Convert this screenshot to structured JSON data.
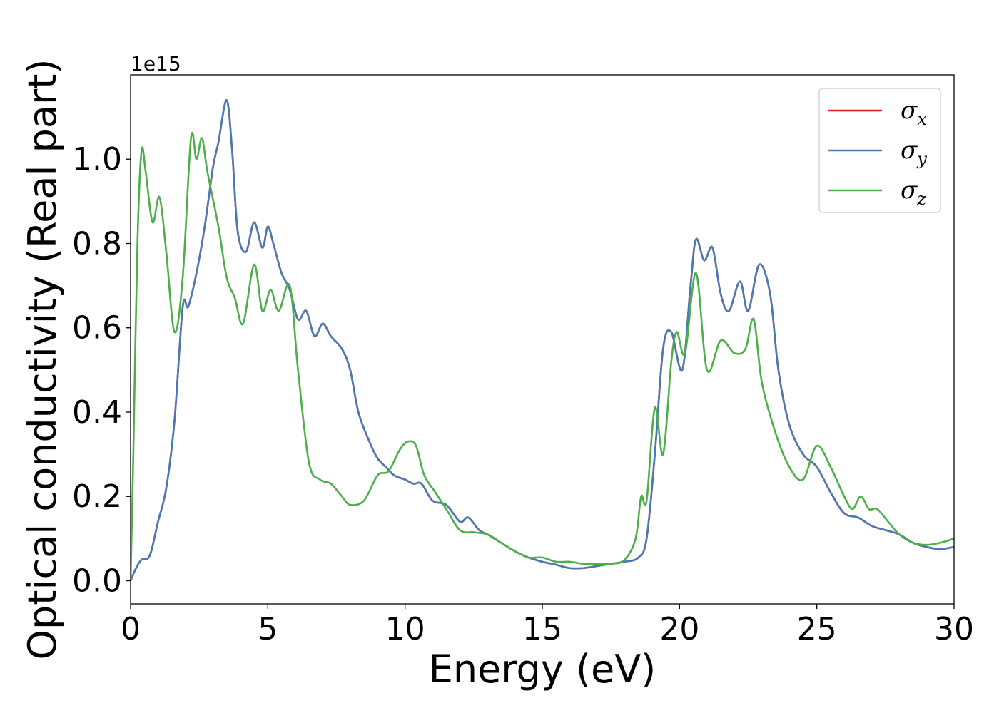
{
  "chart_data": {
    "type": "line",
    "xlabel": "Energy (eV)",
    "ylabel": "Optical conductivity (Real part)",
    "y_offset_text": "1e15",
    "xlim": [
      0,
      30
    ],
    "ylim": [
      -0.055,
      1.2
    ],
    "x_ticks": [
      0,
      5,
      10,
      15,
      20,
      25,
      30
    ],
    "x_tick_labels": [
      "0",
      "5",
      "10",
      "15",
      "20",
      "25",
      "30"
    ],
    "y_ticks": [
      0.0,
      0.2,
      0.4,
      0.6,
      0.8,
      1.0
    ],
    "y_tick_labels": [
      "0.0",
      "0.2",
      "0.4",
      "0.6",
      "0.8",
      "1.0"
    ],
    "grid": false,
    "legend_position": "top-right",
    "series": [
      {
        "name": "σx",
        "legend": {
          "base": "σ",
          "sub": "x"
        },
        "color": "#e41a1c",
        "points": [
          [
            0,
            0.0
          ],
          [
            0.2,
            0.03
          ],
          [
            0.4,
            0.05
          ],
          [
            0.7,
            0.06
          ],
          [
            1.0,
            0.14
          ],
          [
            1.3,
            0.22
          ],
          [
            1.6,
            0.38
          ],
          [
            1.9,
            0.65
          ],
          [
            2.1,
            0.65
          ],
          [
            2.4,
            0.73
          ],
          [
            2.7,
            0.84
          ],
          [
            3.0,
            0.98
          ],
          [
            3.2,
            1.04
          ],
          [
            3.5,
            1.14
          ],
          [
            3.7,
            1.02
          ],
          [
            3.9,
            0.83
          ],
          [
            4.2,
            0.78
          ],
          [
            4.5,
            0.85
          ],
          [
            4.8,
            0.79
          ],
          [
            5.0,
            0.84
          ],
          [
            5.2,
            0.8
          ],
          [
            5.5,
            0.73
          ],
          [
            5.8,
            0.69
          ],
          [
            6.1,
            0.62
          ],
          [
            6.4,
            0.64
          ],
          [
            6.7,
            0.58
          ],
          [
            7.0,
            0.61
          ],
          [
            7.3,
            0.58
          ],
          [
            7.7,
            0.55
          ],
          [
            8.0,
            0.5
          ],
          [
            8.3,
            0.4
          ],
          [
            8.7,
            0.33
          ],
          [
            9.0,
            0.29
          ],
          [
            9.3,
            0.27
          ],
          [
            9.6,
            0.25
          ],
          [
            10.0,
            0.24
          ],
          [
            10.3,
            0.23
          ],
          [
            10.6,
            0.23
          ],
          [
            11.0,
            0.19
          ],
          [
            11.5,
            0.18
          ],
          [
            12.0,
            0.14
          ],
          [
            12.3,
            0.15
          ],
          [
            12.7,
            0.12
          ],
          [
            13.0,
            0.11
          ],
          [
            13.5,
            0.09
          ],
          [
            14.0,
            0.07
          ],
          [
            14.5,
            0.055
          ],
          [
            15.0,
            0.045
          ],
          [
            15.5,
            0.038
          ],
          [
            16.0,
            0.03
          ],
          [
            16.5,
            0.03
          ],
          [
            17.0,
            0.035
          ],
          [
            17.5,
            0.04
          ],
          [
            18.0,
            0.045
          ],
          [
            18.5,
            0.055
          ],
          [
            18.8,
            0.1
          ],
          [
            19.1,
            0.3
          ],
          [
            19.4,
            0.55
          ],
          [
            19.7,
            0.59
          ],
          [
            20.1,
            0.5
          ],
          [
            20.4,
            0.7
          ],
          [
            20.6,
            0.81
          ],
          [
            20.9,
            0.76
          ],
          [
            21.2,
            0.79
          ],
          [
            21.5,
            0.68
          ],
          [
            21.8,
            0.64
          ],
          [
            22.2,
            0.71
          ],
          [
            22.5,
            0.64
          ],
          [
            22.9,
            0.75
          ],
          [
            23.3,
            0.68
          ],
          [
            23.6,
            0.5
          ],
          [
            24.0,
            0.37
          ],
          [
            24.5,
            0.3
          ],
          [
            25.0,
            0.27
          ],
          [
            25.5,
            0.21
          ],
          [
            26.0,
            0.16
          ],
          [
            26.5,
            0.15
          ],
          [
            27.0,
            0.13
          ],
          [
            27.5,
            0.12
          ],
          [
            28.0,
            0.11
          ],
          [
            28.5,
            0.09
          ],
          [
            29.0,
            0.08
          ],
          [
            29.5,
            0.075
          ],
          [
            30.0,
            0.08
          ]
        ]
      },
      {
        "name": "σy",
        "legend": {
          "base": "σ",
          "sub": "y"
        },
        "color": "#4a7ab5",
        "points": [
          [
            0,
            0.0
          ],
          [
            0.2,
            0.03
          ],
          [
            0.4,
            0.05
          ],
          [
            0.7,
            0.06
          ],
          [
            1.0,
            0.14
          ],
          [
            1.3,
            0.22
          ],
          [
            1.6,
            0.38
          ],
          [
            1.9,
            0.65
          ],
          [
            2.1,
            0.65
          ],
          [
            2.4,
            0.73
          ],
          [
            2.7,
            0.84
          ],
          [
            3.0,
            0.98
          ],
          [
            3.2,
            1.04
          ],
          [
            3.5,
            1.14
          ],
          [
            3.7,
            1.02
          ],
          [
            3.9,
            0.83
          ],
          [
            4.2,
            0.78
          ],
          [
            4.5,
            0.85
          ],
          [
            4.8,
            0.79
          ],
          [
            5.0,
            0.84
          ],
          [
            5.2,
            0.8
          ],
          [
            5.5,
            0.73
          ],
          [
            5.8,
            0.69
          ],
          [
            6.1,
            0.62
          ],
          [
            6.4,
            0.64
          ],
          [
            6.7,
            0.58
          ],
          [
            7.0,
            0.61
          ],
          [
            7.3,
            0.58
          ],
          [
            7.7,
            0.55
          ],
          [
            8.0,
            0.5
          ],
          [
            8.3,
            0.4
          ],
          [
            8.7,
            0.33
          ],
          [
            9.0,
            0.29
          ],
          [
            9.3,
            0.27
          ],
          [
            9.6,
            0.25
          ],
          [
            10.0,
            0.24
          ],
          [
            10.3,
            0.23
          ],
          [
            10.6,
            0.23
          ],
          [
            11.0,
            0.19
          ],
          [
            11.5,
            0.18
          ],
          [
            12.0,
            0.14
          ],
          [
            12.3,
            0.15
          ],
          [
            12.7,
            0.12
          ],
          [
            13.0,
            0.11
          ],
          [
            13.5,
            0.09
          ],
          [
            14.0,
            0.07
          ],
          [
            14.5,
            0.055
          ],
          [
            15.0,
            0.045
          ],
          [
            15.5,
            0.038
          ],
          [
            16.0,
            0.03
          ],
          [
            16.5,
            0.03
          ],
          [
            17.0,
            0.035
          ],
          [
            17.5,
            0.04
          ],
          [
            18.0,
            0.045
          ],
          [
            18.5,
            0.055
          ],
          [
            18.8,
            0.1
          ],
          [
            19.1,
            0.3
          ],
          [
            19.4,
            0.55
          ],
          [
            19.7,
            0.59
          ],
          [
            20.1,
            0.5
          ],
          [
            20.4,
            0.7
          ],
          [
            20.6,
            0.81
          ],
          [
            20.9,
            0.76
          ],
          [
            21.2,
            0.79
          ],
          [
            21.5,
            0.68
          ],
          [
            21.8,
            0.64
          ],
          [
            22.2,
            0.71
          ],
          [
            22.5,
            0.64
          ],
          [
            22.9,
            0.75
          ],
          [
            23.3,
            0.68
          ],
          [
            23.6,
            0.5
          ],
          [
            24.0,
            0.37
          ],
          [
            24.5,
            0.3
          ],
          [
            25.0,
            0.27
          ],
          [
            25.5,
            0.21
          ],
          [
            26.0,
            0.16
          ],
          [
            26.5,
            0.15
          ],
          [
            27.0,
            0.13
          ],
          [
            27.5,
            0.12
          ],
          [
            28.0,
            0.11
          ],
          [
            28.5,
            0.09
          ],
          [
            29.0,
            0.08
          ],
          [
            29.5,
            0.075
          ],
          [
            30.0,
            0.08
          ]
        ]
      },
      {
        "name": "σz",
        "legend": {
          "base": "σ",
          "sub": "z"
        },
        "color": "#4daf4a",
        "points": [
          [
            0,
            0.0
          ],
          [
            0.1,
            0.3
          ],
          [
            0.25,
            0.8
          ],
          [
            0.4,
            1.02
          ],
          [
            0.55,
            0.97
          ],
          [
            0.8,
            0.85
          ],
          [
            1.05,
            0.91
          ],
          [
            1.3,
            0.78
          ],
          [
            1.6,
            0.59
          ],
          [
            1.9,
            0.72
          ],
          [
            2.2,
            1.05
          ],
          [
            2.4,
            1.0
          ],
          [
            2.6,
            1.05
          ],
          [
            2.8,
            0.97
          ],
          [
            3.2,
            0.84
          ],
          [
            3.5,
            0.72
          ],
          [
            3.8,
            0.67
          ],
          [
            4.1,
            0.61
          ],
          [
            4.5,
            0.75
          ],
          [
            4.8,
            0.64
          ],
          [
            5.1,
            0.69
          ],
          [
            5.4,
            0.64
          ],
          [
            5.8,
            0.7
          ],
          [
            6.1,
            0.5
          ],
          [
            6.5,
            0.28
          ],
          [
            6.9,
            0.24
          ],
          [
            7.3,
            0.23
          ],
          [
            7.7,
            0.2
          ],
          [
            8.0,
            0.18
          ],
          [
            8.5,
            0.19
          ],
          [
            9.0,
            0.25
          ],
          [
            9.4,
            0.26
          ],
          [
            9.8,
            0.31
          ],
          [
            10.1,
            0.33
          ],
          [
            10.4,
            0.32
          ],
          [
            10.7,
            0.25
          ],
          [
            11.1,
            0.21
          ],
          [
            11.5,
            0.17
          ],
          [
            12.0,
            0.12
          ],
          [
            12.5,
            0.115
          ],
          [
            13.0,
            0.11
          ],
          [
            13.5,
            0.09
          ],
          [
            14.0,
            0.07
          ],
          [
            14.5,
            0.055
          ],
          [
            15.0,
            0.055
          ],
          [
            15.5,
            0.045
          ],
          [
            16.0,
            0.045
          ],
          [
            16.5,
            0.04
          ],
          [
            17.0,
            0.04
          ],
          [
            17.5,
            0.04
          ],
          [
            18.0,
            0.05
          ],
          [
            18.4,
            0.1
          ],
          [
            18.6,
            0.2
          ],
          [
            18.8,
            0.19
          ],
          [
            19.1,
            0.41
          ],
          [
            19.4,
            0.3
          ],
          [
            19.7,
            0.52
          ],
          [
            19.9,
            0.59
          ],
          [
            20.2,
            0.54
          ],
          [
            20.6,
            0.73
          ],
          [
            21.0,
            0.5
          ],
          [
            21.5,
            0.57
          ],
          [
            22.0,
            0.54
          ],
          [
            22.4,
            0.55
          ],
          [
            22.7,
            0.62
          ],
          [
            23.0,
            0.47
          ],
          [
            23.5,
            0.35
          ],
          [
            24.0,
            0.27
          ],
          [
            24.5,
            0.24
          ],
          [
            25.0,
            0.32
          ],
          [
            25.5,
            0.27
          ],
          [
            26.0,
            0.2
          ],
          [
            26.3,
            0.17
          ],
          [
            26.6,
            0.2
          ],
          [
            26.9,
            0.17
          ],
          [
            27.2,
            0.17
          ],
          [
            27.6,
            0.14
          ],
          [
            28.0,
            0.11
          ],
          [
            28.5,
            0.09
          ],
          [
            29.0,
            0.085
          ],
          [
            29.5,
            0.09
          ],
          [
            30.0,
            0.1
          ]
        ]
      }
    ]
  }
}
